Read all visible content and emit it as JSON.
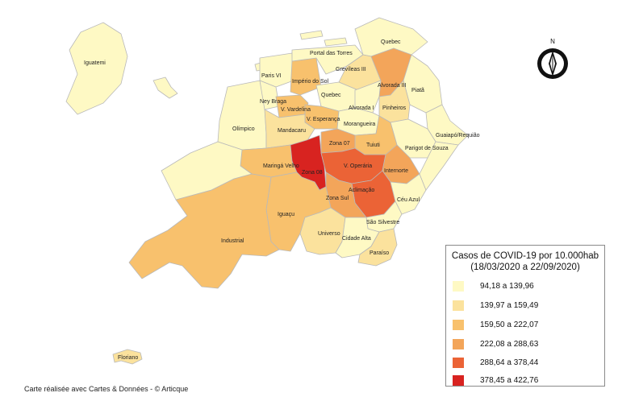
{
  "colors": {
    "c1": "#fef9c4",
    "c2": "#fbe29d",
    "c3": "#f8c16d",
    "c4": "#f3a55a",
    "c5": "#eb6336",
    "c6": "#d82320"
  },
  "districts": [
    {
      "id": "iguatemi",
      "name": "Iguatemi",
      "color": "c1"
    },
    {
      "id": "floriano",
      "name": "Floriano",
      "color": "c2"
    },
    {
      "id": "olimpico",
      "name": "Olímpico",
      "color": "c1"
    },
    {
      "id": "paris-vi",
      "name": "Paris VI",
      "color": "c1"
    },
    {
      "id": "ney-braga",
      "name": "Ney Braga",
      "color": "c1"
    },
    {
      "id": "imperio-do-sol",
      "name": "Império do Sol",
      "color": "c3"
    },
    {
      "id": "quebec-n",
      "name": "Quebec",
      "color": "c1"
    },
    {
      "id": "quebec-c",
      "name": "Quebec",
      "color": "c1"
    },
    {
      "id": "portal-das-torres",
      "name": "Portal das Torres",
      "color": "c1"
    },
    {
      "id": "grevileas-iii",
      "name": "Grevíleas III",
      "color": "c2"
    },
    {
      "id": "alvorada-iii",
      "name": "Alvorada III",
      "color": "c4"
    },
    {
      "id": "piata",
      "name": "Piatã",
      "color": "c1"
    },
    {
      "id": "alvorada-i",
      "name": "Alvorada I",
      "color": "c1"
    },
    {
      "id": "pinheiros",
      "name": "Pinheiros",
      "color": "c2"
    },
    {
      "id": "v-vardelina",
      "name": "V. Vardelina",
      "color": "c3"
    },
    {
      "id": "v-esperanca",
      "name": "V. Esperança",
      "color": "c3"
    },
    {
      "id": "mandacaru",
      "name": "Mandacaru",
      "color": "c2"
    },
    {
      "id": "morangueira",
      "name": "Morangueira",
      "color": "c1"
    },
    {
      "id": "guaiapo",
      "name": "Guaiapó/Requião",
      "color": "c1"
    },
    {
      "id": "parigot",
      "name": "Parigot de Souza",
      "color": "c1"
    },
    {
      "id": "tuiuti",
      "name": "Tuiuti",
      "color": "c3"
    },
    {
      "id": "zona-07",
      "name": "Zona 07",
      "color": "c4"
    },
    {
      "id": "maringa-velho",
      "name": "Maringá Velho",
      "color": "c3"
    },
    {
      "id": "zona-08",
      "name": "Zona 08",
      "color": "c6"
    },
    {
      "id": "v-operaria",
      "name": "V. Operária",
      "color": "c5"
    },
    {
      "id": "internorte",
      "name": "Internorte",
      "color": "c4"
    },
    {
      "id": "aclimacao",
      "name": "Aclimação",
      "color": "c5"
    },
    {
      "id": "zona-sul",
      "name": "Zona Sul",
      "color": "c4"
    },
    {
      "id": "ceu-azul",
      "name": "Céu Azul",
      "color": "c1"
    },
    {
      "id": "iguacu",
      "name": "Iguaçu",
      "color": "c3"
    },
    {
      "id": "industrial",
      "name": "Industrial",
      "color": "c3"
    },
    {
      "id": "sao-silvestre",
      "name": "São Silvestre",
      "color": "c1"
    },
    {
      "id": "universo",
      "name": "Universo",
      "color": "c2"
    },
    {
      "id": "cidade-alta",
      "name": "Cidade Alta",
      "color": "c1"
    },
    {
      "id": "paraiso",
      "name": "Paraíso",
      "color": "c2"
    },
    {
      "id": "sw-small",
      "name": "",
      "color": "c1"
    },
    {
      "id": "south-east",
      "name": "",
      "color": "c1"
    }
  ],
  "compass": {
    "label": "N"
  },
  "legend": {
    "title_line1": "Casos de COVID-19 por 10.000hab",
    "title_line2": "(18/03/2020 a 22/09/2020)",
    "items": [
      {
        "label": "94,18 a 139,96",
        "color": "#fef9c4"
      },
      {
        "label": "139,97 a 159,49",
        "color": "#fbe29d"
      },
      {
        "label": "159,50 a 222,07",
        "color": "#f8c16d"
      },
      {
        "label": "222,08 a 288,63",
        "color": "#f3a55a"
      },
      {
        "label": "288,64 a 378,44",
        "color": "#eb6336"
      },
      {
        "label": "378,45 a 422,76",
        "color": "#d82320"
      }
    ]
  },
  "credit": "Carte réalisée avec Cartes & Données - © Articque"
}
